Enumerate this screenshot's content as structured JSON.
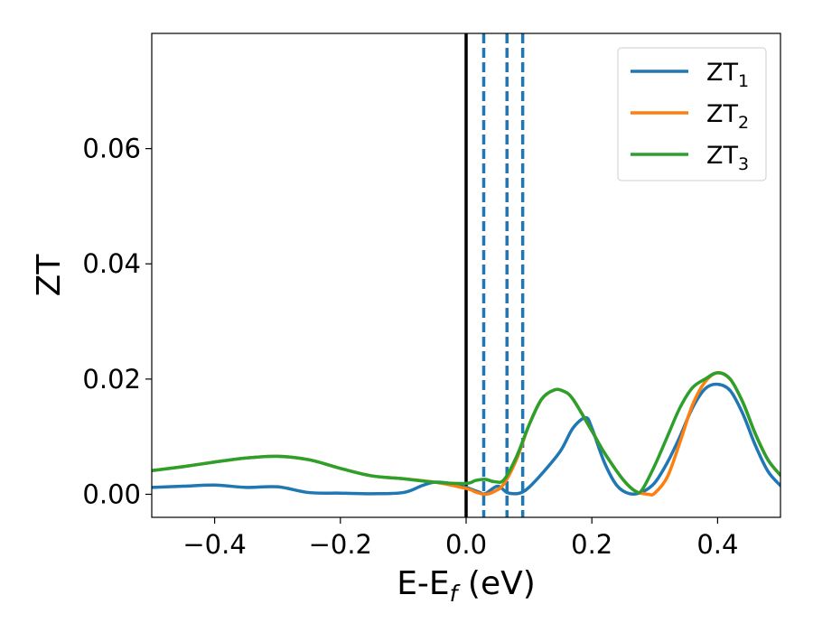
{
  "chart_data": {
    "type": "line",
    "title": "",
    "xlabel": {
      "main": "E-E",
      "sub": "f",
      "suffix": " (eV)"
    },
    "ylabel": "ZT",
    "xlim": [
      -0.5,
      0.5
    ],
    "ylim": [
      -0.004,
      0.08
    ],
    "xticks": [
      -0.4,
      -0.2,
      0.0,
      0.2,
      0.4
    ],
    "xtick_labels": [
      "−0.4",
      "−0.2",
      "0.0",
      "0.2",
      "0.4"
    ],
    "yticks": [
      0.0,
      0.02,
      0.04,
      0.06
    ],
    "ytick_labels": [
      "0.00",
      "0.02",
      "0.04",
      "0.06"
    ],
    "grid": false,
    "legend_position": "top-right",
    "series": [
      {
        "name": "ZT",
        "sub": "1",
        "color": "#1f77b4",
        "x": [
          -0.5,
          -0.45,
          -0.4,
          -0.35,
          -0.3,
          -0.25,
          -0.2,
          -0.15,
          -0.1,
          -0.07,
          -0.05,
          -0.02,
          0.0,
          0.02,
          0.03,
          0.05,
          0.065,
          0.08,
          0.09,
          0.1,
          0.12,
          0.15,
          0.17,
          0.19,
          0.2,
          0.22,
          0.24,
          0.26,
          0.28,
          0.3,
          0.32,
          0.34,
          0.36,
          0.38,
          0.4,
          0.42,
          0.44,
          0.46,
          0.48,
          0.5
        ],
        "y": [
          0.0012,
          0.0014,
          0.0016,
          0.0012,
          0.0013,
          0.0003,
          0.0002,
          0.0001,
          0.0003,
          0.0015,
          0.0021,
          0.0018,
          0.0012,
          0.0004,
          0.0001,
          0.0014,
          0.0003,
          0.0001,
          0.0004,
          0.0012,
          0.0035,
          0.0075,
          0.0115,
          0.0133,
          0.0115,
          0.0055,
          0.0015,
          0.0001,
          0.0004,
          0.002,
          0.0055,
          0.01,
          0.015,
          0.0183,
          0.0191,
          0.018,
          0.014,
          0.0085,
          0.004,
          0.0015
        ]
      },
      {
        "name": "ZT",
        "sub": "2",
        "color": "#ff7f0e",
        "x": [
          -0.5,
          -0.45,
          -0.4,
          -0.35,
          -0.3,
          -0.25,
          -0.2,
          -0.15,
          -0.1,
          -0.05,
          0.0,
          0.015,
          0.03,
          0.045,
          0.06,
          0.08,
          0.1,
          0.12,
          0.14,
          0.155,
          0.17,
          0.2,
          0.22,
          0.25,
          0.27,
          0.29,
          0.3,
          0.32,
          0.34,
          0.36,
          0.38,
          0.4,
          0.42,
          0.44,
          0.46,
          0.48,
          0.5
        ],
        "y": [
          0.0041,
          0.0048,
          0.0056,
          0.0063,
          0.0066,
          0.006,
          0.0045,
          0.0032,
          0.0027,
          0.0021,
          0.001,
          0.0004,
          0.0,
          0.0005,
          0.0018,
          0.006,
          0.012,
          0.0165,
          0.0181,
          0.0179,
          0.0165,
          0.011,
          0.0072,
          0.0025,
          0.0005,
          0.0,
          0.0002,
          0.003,
          0.009,
          0.0155,
          0.0195,
          0.0211,
          0.02,
          0.016,
          0.0105,
          0.006,
          0.0033
        ]
      },
      {
        "name": "ZT",
        "sub": "3",
        "color": "#2ca02c",
        "x": [
          -0.5,
          -0.45,
          -0.4,
          -0.35,
          -0.3,
          -0.25,
          -0.2,
          -0.15,
          -0.1,
          -0.05,
          0.0,
          0.015,
          0.03,
          0.045,
          0.06,
          0.08,
          0.1,
          0.12,
          0.14,
          0.155,
          0.17,
          0.2,
          0.22,
          0.25,
          0.27,
          0.28,
          0.3,
          0.32,
          0.34,
          0.36,
          0.38,
          0.4,
          0.42,
          0.44,
          0.46,
          0.48,
          0.5
        ],
        "y": [
          0.0041,
          0.0048,
          0.0056,
          0.0063,
          0.0066,
          0.006,
          0.0045,
          0.0032,
          0.0027,
          0.0021,
          0.0019,
          0.0024,
          0.0026,
          0.0022,
          0.0025,
          0.0065,
          0.012,
          0.0165,
          0.0181,
          0.0179,
          0.0165,
          0.011,
          0.0072,
          0.0025,
          0.0005,
          0.0008,
          0.005,
          0.01,
          0.015,
          0.0185,
          0.02,
          0.0211,
          0.02,
          0.016,
          0.0105,
          0.006,
          0.0033
        ]
      }
    ],
    "vertical_lines": [
      {
        "x": 0.0,
        "style": "solid",
        "color": "#000000"
      },
      {
        "x": 0.028,
        "style": "dashed",
        "color": "#1f77b4"
      },
      {
        "x": 0.065,
        "style": "dashed",
        "color": "#1f77b4"
      },
      {
        "x": 0.09,
        "style": "dashed",
        "color": "#1f77b4"
      }
    ]
  }
}
